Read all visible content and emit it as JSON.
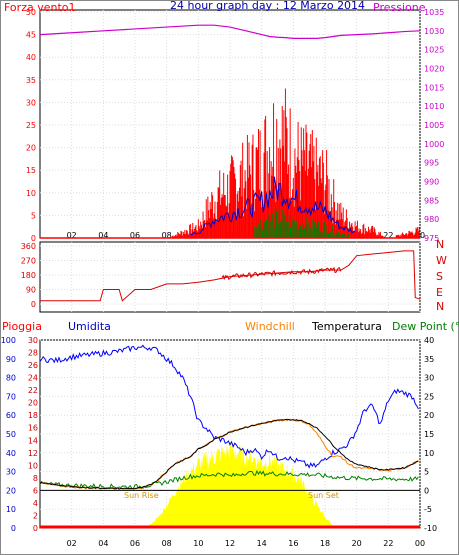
{
  "title": "24 hour graph day : 12 Marzo 2014",
  "colors": {
    "wind": "#ff0000",
    "pressure": "#cc00cc",
    "dir": "#dd0000",
    "rain": "#ff0000",
    "hum": "#0000ff",
    "windchill": "#ff8000",
    "temp": "#000000",
    "dew": "#008000",
    "solar": "#ffff00",
    "gust_blue": "#0000cc"
  },
  "x_tick_labels": [
    "02",
    "04",
    "06",
    "08",
    "10",
    "12",
    "14",
    "16",
    "18",
    "20",
    "22",
    "00"
  ],
  "top": {
    "left_title": "Forza vento1",
    "right_title": "Pressione",
    "left_ticks": [
      "50",
      "45",
      "40",
      "35",
      "30",
      "25",
      "20",
      "15",
      "10",
      "5",
      "0"
    ],
    "right_ticks": [
      "1035",
      "1030",
      "1025",
      "1020",
      "1015",
      "1010",
      "1005",
      "1000",
      "995",
      "990",
      "985",
      "980",
      "975"
    ]
  },
  "mid": {
    "left_ticks": [
      "360",
      "270",
      "180",
      "90",
      "0"
    ],
    "right_letters": [
      "N",
      "W",
      "S",
      "E",
      "N"
    ]
  },
  "bottom": {
    "labels": {
      "rain": "Pioggia",
      "hum": "Umidita",
      "windchill": "Windchill",
      "temp": "Temperatura",
      "dew": "Dew Point (°C"
    },
    "hum_ticks": [
      "100",
      "90",
      "80",
      "70",
      "60",
      "50",
      "40",
      "30",
      "20",
      "10",
      "0"
    ],
    "rain_ticks": [
      "30",
      "28",
      "26",
      "24",
      "22",
      "20",
      "18",
      "16",
      "14",
      "12",
      "10",
      "8",
      "6",
      "4",
      "2",
      "0"
    ],
    "temp_ticks": [
      "40",
      "35",
      "30",
      "25",
      "20",
      "15",
      "10",
      "5",
      "0",
      "-5",
      "-10"
    ],
    "sunrise": "Sun Rise",
    "sunset": "Sun Set"
  },
  "chart_data": [
    {
      "type": "line",
      "title": "24 hour graph day : 12 Marzo 2014",
      "x_hours": [
        0,
        2,
        4,
        6,
        8,
        10,
        11,
        12,
        12.5,
        13,
        13.5,
        14,
        14.5,
        15,
        15.5,
        16,
        16.5,
        17,
        17.5,
        18,
        18.5,
        19,
        20,
        21,
        22,
        23,
        24
      ],
      "series": [
        {
          "name": "Forza vento1",
          "axis": "left",
          "values": [
            0,
            0,
            0,
            0,
            0,
            3,
            10,
            13,
            15,
            16,
            18,
            20,
            24,
            27,
            25,
            21,
            19,
            18,
            16,
            15,
            10,
            6,
            3,
            2,
            0,
            1,
            2
          ]
        },
        {
          "name": "Pressione",
          "axis": "right",
          "values": [
            1029,
            1029.5,
            1030,
            1030.5,
            1031,
            1031.5,
            1031.5,
            1031,
            1030.5,
            1030,
            1029.5,
            1029,
            1028.5,
            1028.3,
            1028.2,
            1028,
            1028,
            1028,
            1028,
            1028.2,
            1028.5,
            1028.8,
            1029,
            1029.2,
            1029.5,
            1029.8,
            1030
          ]
        }
      ],
      "ylim_left": [
        0,
        50
      ],
      "ylim_right": [
        975,
        1035
      ]
    },
    {
      "type": "line",
      "series": [
        {
          "name": "direction",
          "x_hours": [
            0,
            1,
            2,
            3,
            3.8,
            4,
            4.5,
            5,
            5.2,
            6,
            7,
            8,
            9,
            10,
            11,
            12,
            14,
            16,
            17,
            18,
            19,
            19.5,
            20,
            21,
            22,
            23,
            23.6,
            23.7,
            24
          ],
          "values": [
            20,
            20,
            20,
            20,
            20,
            90,
            90,
            90,
            20,
            90,
            90,
            125,
            125,
            135,
            150,
            170,
            185,
            200,
            200,
            210,
            210,
            240,
            300,
            310,
            320,
            330,
            330,
            40,
            30
          ]
        }
      ],
      "ylim": [
        0,
        360
      ]
    },
    {
      "type": "line",
      "x_hours": [
        0,
        1,
        2,
        3,
        4,
        5,
        6,
        6.5,
        7,
        7.5,
        8,
        8.5,
        9,
        9.5,
        10,
        10.5,
        11,
        11.5,
        12,
        12.5,
        13,
        13.5,
        14,
        14.5,
        15,
        15.5,
        16,
        16.5,
        17,
        17.5,
        18,
        18.5,
        19,
        19.5,
        20,
        20.5,
        21,
        21.5,
        22,
        22.5,
        23,
        23.5,
        24
      ],
      "series": [
        {
          "name": "Umidita",
          "axis": "hum",
          "values": [
            90,
            89,
            91,
            92,
            93,
            94,
            96,
            96,
            96,
            94,
            90,
            86,
            80,
            70,
            57,
            53,
            48,
            47,
            45,
            43,
            40,
            42,
            38,
            42,
            37,
            38,
            36,
            35,
            33,
            33,
            37,
            40,
            42,
            45,
            52,
            63,
            65,
            55,
            68,
            73,
            72,
            70,
            63
          ]
        },
        {
          "name": "Temperatura",
          "axis": "temp",
          "values": [
            2,
            1.5,
            1,
            0.7,
            0.6,
            0.5,
            0.5,
            0.8,
            1.5,
            3,
            5,
            7,
            8,
            9,
            11,
            12,
            13.5,
            14.5,
            15.5,
            16.2,
            16.8,
            17.3,
            17.8,
            18.2,
            18.6,
            18.8,
            18.8,
            18.5,
            17.8,
            16.5,
            14.5,
            12,
            10,
            8,
            7,
            6.5,
            6,
            5.5,
            5.5,
            5.8,
            6,
            7,
            8
          ]
        },
        {
          "name": "Windchill",
          "axis": "temp",
          "values": [
            2,
            1.5,
            1,
            0.7,
            0.6,
            0.5,
            0.5,
            0.8,
            1.5,
            3,
            5,
            7,
            8,
            9,
            11,
            12,
            13.5,
            14.5,
            15.5,
            16.2,
            16.8,
            17.3,
            17.8,
            18.2,
            18.6,
            18.8,
            18.8,
            18.5,
            17.5,
            15,
            12,
            9,
            9,
            7,
            6,
            5.8,
            5.8,
            5.5,
            5.2,
            5.6,
            6,
            7,
            8
          ]
        },
        {
          "name": "Dew Point (°C",
          "axis": "temp",
          "values": [
            1.8,
            1.5,
            1.3,
            1.2,
            1.1,
            1.0,
            1.0,
            1.1,
            1.4,
            1.8,
            2.3,
            2.8,
            3.3,
            3.7,
            3.9,
            4.0,
            4.3,
            4.4,
            3.8,
            4.2,
            4.7,
            4.6,
            4.5,
            4.5,
            4.4,
            4.4,
            4.3,
            4.3,
            4.2,
            4.1,
            3.8,
            3.6,
            3.4,
            3.3,
            3.2,
            3.2,
            3.1,
            3.1,
            3.0,
            3.0,
            3.0,
            3.0,
            3.0
          ]
        },
        {
          "name": "solar",
          "axis": "hum",
          "values": [
            0,
            0,
            0,
            0,
            0,
            0,
            0,
            0,
            2,
            6,
            12,
            19,
            25,
            30,
            34,
            36,
            38,
            40,
            41,
            40,
            38,
            37,
            35,
            36,
            33,
            31,
            28,
            25,
            18,
            12,
            6,
            1,
            0,
            0,
            0,
            0,
            0,
            0,
            0,
            0,
            0,
            0,
            0
          ]
        }
      ],
      "ylim_hum": [
        0,
        100
      ],
      "ylim_temp": [
        -10,
        40
      ],
      "ylim_rain": [
        0,
        30
      ]
    }
  ]
}
